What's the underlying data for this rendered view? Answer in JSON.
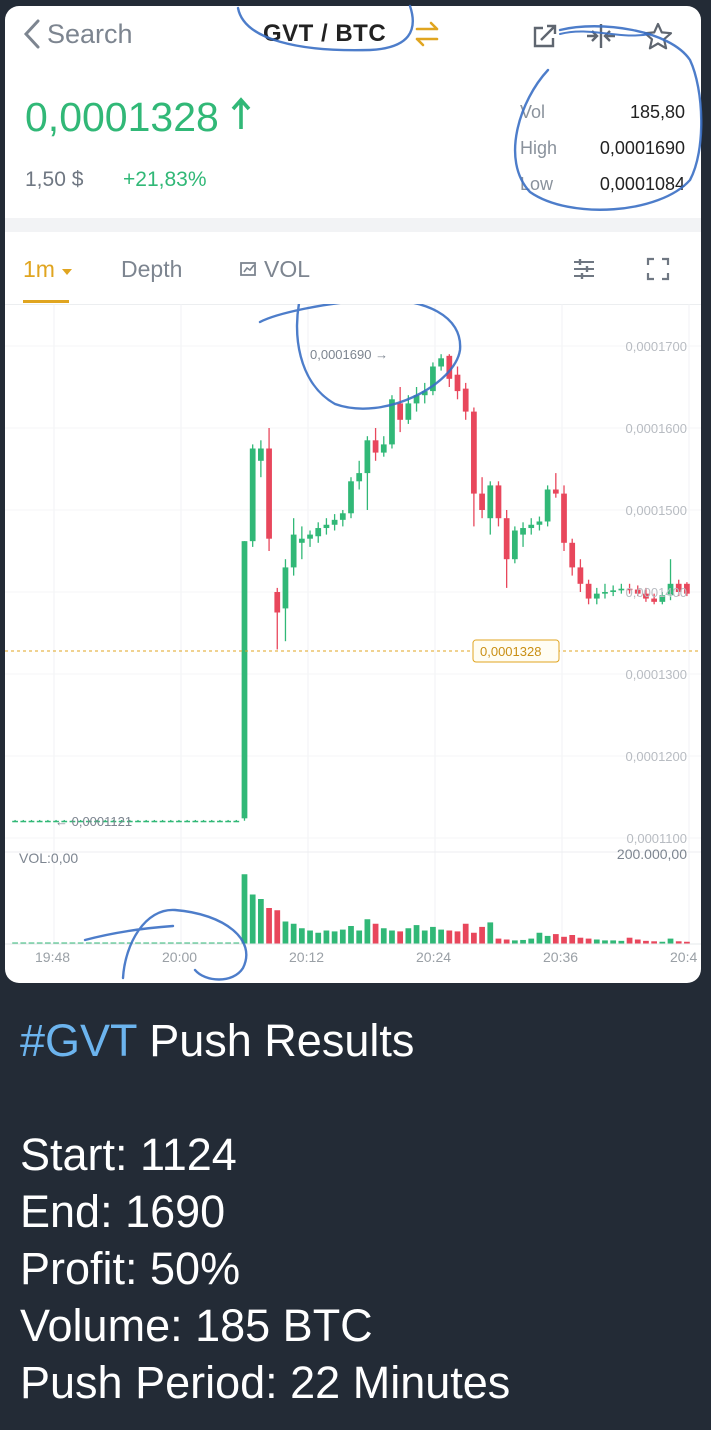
{
  "header": {
    "back_label": "Search",
    "pair": "GVT / BTC"
  },
  "ticker": {
    "price": "0,0001328",
    "fiat": "1,50 $",
    "change": "+21,83%",
    "vol_label": "Vol",
    "vol_value": "185,80",
    "high_label": "High",
    "high_value": "0,0001690",
    "low_label": "Low",
    "low_value": "0,0001084"
  },
  "tabs": {
    "interval": "1m",
    "depth": "Depth",
    "vol": "VOL"
  },
  "chart_data": {
    "type": "candlestick",
    "y_ticks": [
      "0,0001700",
      "0,0001600",
      "0,0001500",
      "0,0001400",
      "0,0001300",
      "0,0001200",
      "0,0001100"
    ],
    "y_range": [
      0.00011,
      0.00017
    ],
    "x_ticks": [
      "19:48",
      "20:00",
      "20:12",
      "20:24",
      "20:36",
      "20:4"
    ],
    "high_annotation": "0,0001690",
    "low_annotation": "0,0001121",
    "current_price_label": "0,0001328",
    "current_price": 0.0001328,
    "volume_label": "VOL:0,00",
    "volume_max": "200.000,00",
    "candles": [
      {
        "o": 0.0001121,
        "h": 0.0001122,
        "l": 0.000112,
        "c": 0.0001121
      },
      {
        "o": 0.0001121,
        "h": 0.0001122,
        "l": 0.000112,
        "c": 0.0001121
      },
      {
        "o": 0.0001121,
        "h": 0.0001122,
        "l": 0.000112,
        "c": 0.0001121
      },
      {
        "o": 0.0001121,
        "h": 0.0001122,
        "l": 0.000112,
        "c": 0.0001121
      },
      {
        "o": 0.0001121,
        "h": 0.0001122,
        "l": 0.000112,
        "c": 0.0001121
      },
      {
        "o": 0.0001121,
        "h": 0.0001122,
        "l": 0.000112,
        "c": 0.0001121
      },
      {
        "o": 0.0001121,
        "h": 0.0001122,
        "l": 0.000112,
        "c": 0.0001121
      },
      {
        "o": 0.0001121,
        "h": 0.0001122,
        "l": 0.000112,
        "c": 0.0001121
      },
      {
        "o": 0.0001121,
        "h": 0.0001122,
        "l": 0.000112,
        "c": 0.0001121
      },
      {
        "o": 0.0001121,
        "h": 0.0001122,
        "l": 0.000112,
        "c": 0.0001121
      },
      {
        "o": 0.0001121,
        "h": 0.0001122,
        "l": 0.000112,
        "c": 0.0001121
      },
      {
        "o": 0.0001121,
        "h": 0.0001122,
        "l": 0.000112,
        "c": 0.0001121
      },
      {
        "o": 0.0001121,
        "h": 0.0001122,
        "l": 0.000112,
        "c": 0.0001121
      },
      {
        "o": 0.0001121,
        "h": 0.0001122,
        "l": 0.000112,
        "c": 0.0001121
      },
      {
        "o": 0.0001121,
        "h": 0.0001122,
        "l": 0.000112,
        "c": 0.0001121
      },
      {
        "o": 0.0001121,
        "h": 0.0001122,
        "l": 0.000112,
        "c": 0.0001121
      },
      {
        "o": 0.0001121,
        "h": 0.0001122,
        "l": 0.000112,
        "c": 0.0001121
      },
      {
        "o": 0.0001121,
        "h": 0.0001122,
        "l": 0.000112,
        "c": 0.0001121
      },
      {
        "o": 0.0001121,
        "h": 0.0001122,
        "l": 0.000112,
        "c": 0.0001121
      },
      {
        "o": 0.0001121,
        "h": 0.0001122,
        "l": 0.000112,
        "c": 0.0001121
      },
      {
        "o": 0.0001121,
        "h": 0.0001122,
        "l": 0.000112,
        "c": 0.0001121
      },
      {
        "o": 0.0001121,
        "h": 0.0001122,
        "l": 0.000112,
        "c": 0.0001121
      },
      {
        "o": 0.0001121,
        "h": 0.0001122,
        "l": 0.000112,
        "c": 0.0001121
      },
      {
        "o": 0.0001121,
        "h": 0.0001122,
        "l": 0.000112,
        "c": 0.0001121
      },
      {
        "o": 0.0001121,
        "h": 0.0001122,
        "l": 0.000112,
        "c": 0.0001121
      },
      {
        "o": 0.0001121,
        "h": 0.0001122,
        "l": 0.000112,
        "c": 0.0001121
      },
      {
        "o": 0.0001121,
        "h": 0.0001122,
        "l": 0.000112,
        "c": 0.0001121
      },
      {
        "o": 0.0001121,
        "h": 0.0001122,
        "l": 0.000112,
        "c": 0.0001121
      },
      {
        "o": 0.0001124,
        "h": 0.0001462,
        "l": 0.0001121,
        "c": 0.0001462
      },
      {
        "o": 0.0001462,
        "h": 0.000158,
        "l": 0.0001455,
        "c": 0.0001575
      },
      {
        "o": 0.000156,
        "h": 0.0001585,
        "l": 0.000154,
        "c": 0.0001575
      },
      {
        "o": 0.0001575,
        "h": 0.00016,
        "l": 0.000145,
        "c": 0.0001465
      },
      {
        "o": 0.00014,
        "h": 0.0001405,
        "l": 0.000133,
        "c": 0.0001375
      },
      {
        "o": 0.000138,
        "h": 0.000144,
        "l": 0.000134,
        "c": 0.000143
      },
      {
        "o": 0.000143,
        "h": 0.000149,
        "l": 0.000142,
        "c": 0.000147
      },
      {
        "o": 0.000146,
        "h": 0.000148,
        "l": 0.000144,
        "c": 0.0001465
      },
      {
        "o": 0.0001465,
        "h": 0.0001475,
        "l": 0.0001455,
        "c": 0.000147
      },
      {
        "o": 0.0001468,
        "h": 0.0001485,
        "l": 0.000146,
        "c": 0.0001478
      },
      {
        "o": 0.0001478,
        "h": 0.000149,
        "l": 0.000147,
        "c": 0.0001482
      },
      {
        "o": 0.0001482,
        "h": 0.0001495,
        "l": 0.0001475,
        "c": 0.0001488
      },
      {
        "o": 0.0001488,
        "h": 0.00015,
        "l": 0.000148,
        "c": 0.0001496
      },
      {
        "o": 0.0001496,
        "h": 0.000154,
        "l": 0.000149,
        "c": 0.0001535
      },
      {
        "o": 0.0001535,
        "h": 0.000156,
        "l": 0.0001525,
        "c": 0.0001545
      },
      {
        "o": 0.0001545,
        "h": 0.000159,
        "l": 0.00015,
        "c": 0.0001585
      },
      {
        "o": 0.0001585,
        "h": 0.00016,
        "l": 0.000156,
        "c": 0.000157
      },
      {
        "o": 0.000157,
        "h": 0.000159,
        "l": 0.0001565,
        "c": 0.000158
      },
      {
        "o": 0.000158,
        "h": 0.000164,
        "l": 0.0001575,
        "c": 0.0001635
      },
      {
        "o": 0.000163,
        "h": 0.000165,
        "l": 0.0001595,
        "c": 0.000161
      },
      {
        "o": 0.000161,
        "h": 0.000164,
        "l": 0.0001605,
        "c": 0.000163
      },
      {
        "o": 0.000163,
        "h": 0.000165,
        "l": 0.000162,
        "c": 0.000164
      },
      {
        "o": 0.000164,
        "h": 0.0001655,
        "l": 0.000163,
        "c": 0.0001645
      },
      {
        "o": 0.0001645,
        "h": 0.000168,
        "l": 0.000164,
        "c": 0.0001675
      },
      {
        "o": 0.0001675,
        "h": 0.000169,
        "l": 0.000167,
        "c": 0.0001685
      },
      {
        "o": 0.0001688,
        "h": 0.000169,
        "l": 0.000165,
        "c": 0.000166
      },
      {
        "o": 0.0001665,
        "h": 0.0001675,
        "l": 0.0001635,
        "c": 0.0001645
      },
      {
        "o": 0.0001648,
        "h": 0.0001655,
        "l": 0.000161,
        "c": 0.000162
      },
      {
        "o": 0.000162,
        "h": 0.0001625,
        "l": 0.000148,
        "c": 0.000152
      },
      {
        "o": 0.000152,
        "h": 0.000154,
        "l": 0.000149,
        "c": 0.00015
      },
      {
        "o": 0.000149,
        "h": 0.0001535,
        "l": 0.000147,
        "c": 0.000153
      },
      {
        "o": 0.000153,
        "h": 0.0001535,
        "l": 0.000148,
        "c": 0.000149
      },
      {
        "o": 0.000149,
        "h": 0.00015,
        "l": 0.0001405,
        "c": 0.000144
      },
      {
        "o": 0.000144,
        "h": 0.000148,
        "l": 0.0001435,
        "c": 0.0001475
      },
      {
        "o": 0.000147,
        "h": 0.0001485,
        "l": 0.0001455,
        "c": 0.0001478
      },
      {
        "o": 0.0001478,
        "h": 0.000149,
        "l": 0.000147,
        "c": 0.0001482
      },
      {
        "o": 0.0001482,
        "h": 0.0001492,
        "l": 0.0001475,
        "c": 0.0001486
      },
      {
        "o": 0.0001486,
        "h": 0.000153,
        "l": 0.000148,
        "c": 0.0001525
      },
      {
        "o": 0.0001525,
        "h": 0.0001545,
        "l": 0.0001515,
        "c": 0.000152
      },
      {
        "o": 0.000152,
        "h": 0.000153,
        "l": 0.000145,
        "c": 0.000146
      },
      {
        "o": 0.000146,
        "h": 0.0001465,
        "l": 0.000142,
        "c": 0.000143
      },
      {
        "o": 0.000143,
        "h": 0.000144,
        "l": 0.00014,
        "c": 0.000141
      },
      {
        "o": 0.000141,
        "h": 0.0001415,
        "l": 0.0001385,
        "c": 0.0001392
      },
      {
        "o": 0.0001392,
        "h": 0.0001405,
        "l": 0.0001385,
        "c": 0.0001398
      },
      {
        "o": 0.0001398,
        "h": 0.000141,
        "l": 0.0001392,
        "c": 0.00014
      },
      {
        "o": 0.00014,
        "h": 0.0001408,
        "l": 0.0001395,
        "c": 0.0001402
      },
      {
        "o": 0.0001402,
        "h": 0.000141,
        "l": 0.0001398,
        "c": 0.0001404
      },
      {
        "o": 0.0001404,
        "h": 0.000141,
        "l": 0.0001398,
        "c": 0.0001403
      },
      {
        "o": 0.0001403,
        "h": 0.0001408,
        "l": 0.0001395,
        "c": 0.0001398
      },
      {
        "o": 0.0001398,
        "h": 0.0001405,
        "l": 0.0001388,
        "c": 0.0001392
      },
      {
        "o": 0.0001392,
        "h": 0.0001398,
        "l": 0.0001385,
        "c": 0.0001388
      },
      {
        "o": 0.0001388,
        "h": 0.00014,
        "l": 0.0001385,
        "c": 0.0001396
      },
      {
        "o": 0.0001396,
        "h": 0.000144,
        "l": 0.000139,
        "c": 0.000141
      },
      {
        "o": 0.000141,
        "h": 0.0001415,
        "l": 0.0001395,
        "c": 0.00014
      },
      {
        "o": 0.000141,
        "h": 0.0001412,
        "l": 0.0001395,
        "c": 0.0001398
      }
    ],
    "volumes": [
      0,
      0,
      0,
      0,
      0,
      0,
      0,
      0,
      0,
      0,
      0,
      0,
      0,
      0,
      0,
      0,
      0,
      0,
      0,
      0,
      0,
      0,
      0,
      0,
      0,
      0,
      0,
      0,
      155000,
      110000,
      100000,
      80000,
      75000,
      50000,
      45000,
      35000,
      30000,
      25000,
      30000,
      28000,
      32000,
      40000,
      30000,
      55000,
      45000,
      35000,
      30000,
      28000,
      35000,
      42000,
      30000,
      38000,
      32000,
      30000,
      28000,
      45000,
      25000,
      38000,
      48000,
      12000,
      10000,
      8000,
      9000,
      12000,
      25000,
      18000,
      22000,
      16000,
      20000,
      14000,
      12000,
      10000,
      8000,
      8000,
      7000,
      14000,
      10000,
      7000,
      6000,
      5000,
      12000,
      6000,
      5000
    ],
    "timeframe": "1m"
  },
  "message": {
    "hashtag": "#GVT",
    "title": " Push Results",
    "lines": [
      "Start: 1124",
      "End: 1690",
      "Profit: 50%",
      "Volume: 185 BTC",
      "Push Period: 22 Minutes"
    ]
  },
  "colors": {
    "up": "#31b877",
    "down": "#e8475c",
    "accent": "#e0a520",
    "background": "#232b36",
    "hashtag": "#6cb4ee"
  }
}
